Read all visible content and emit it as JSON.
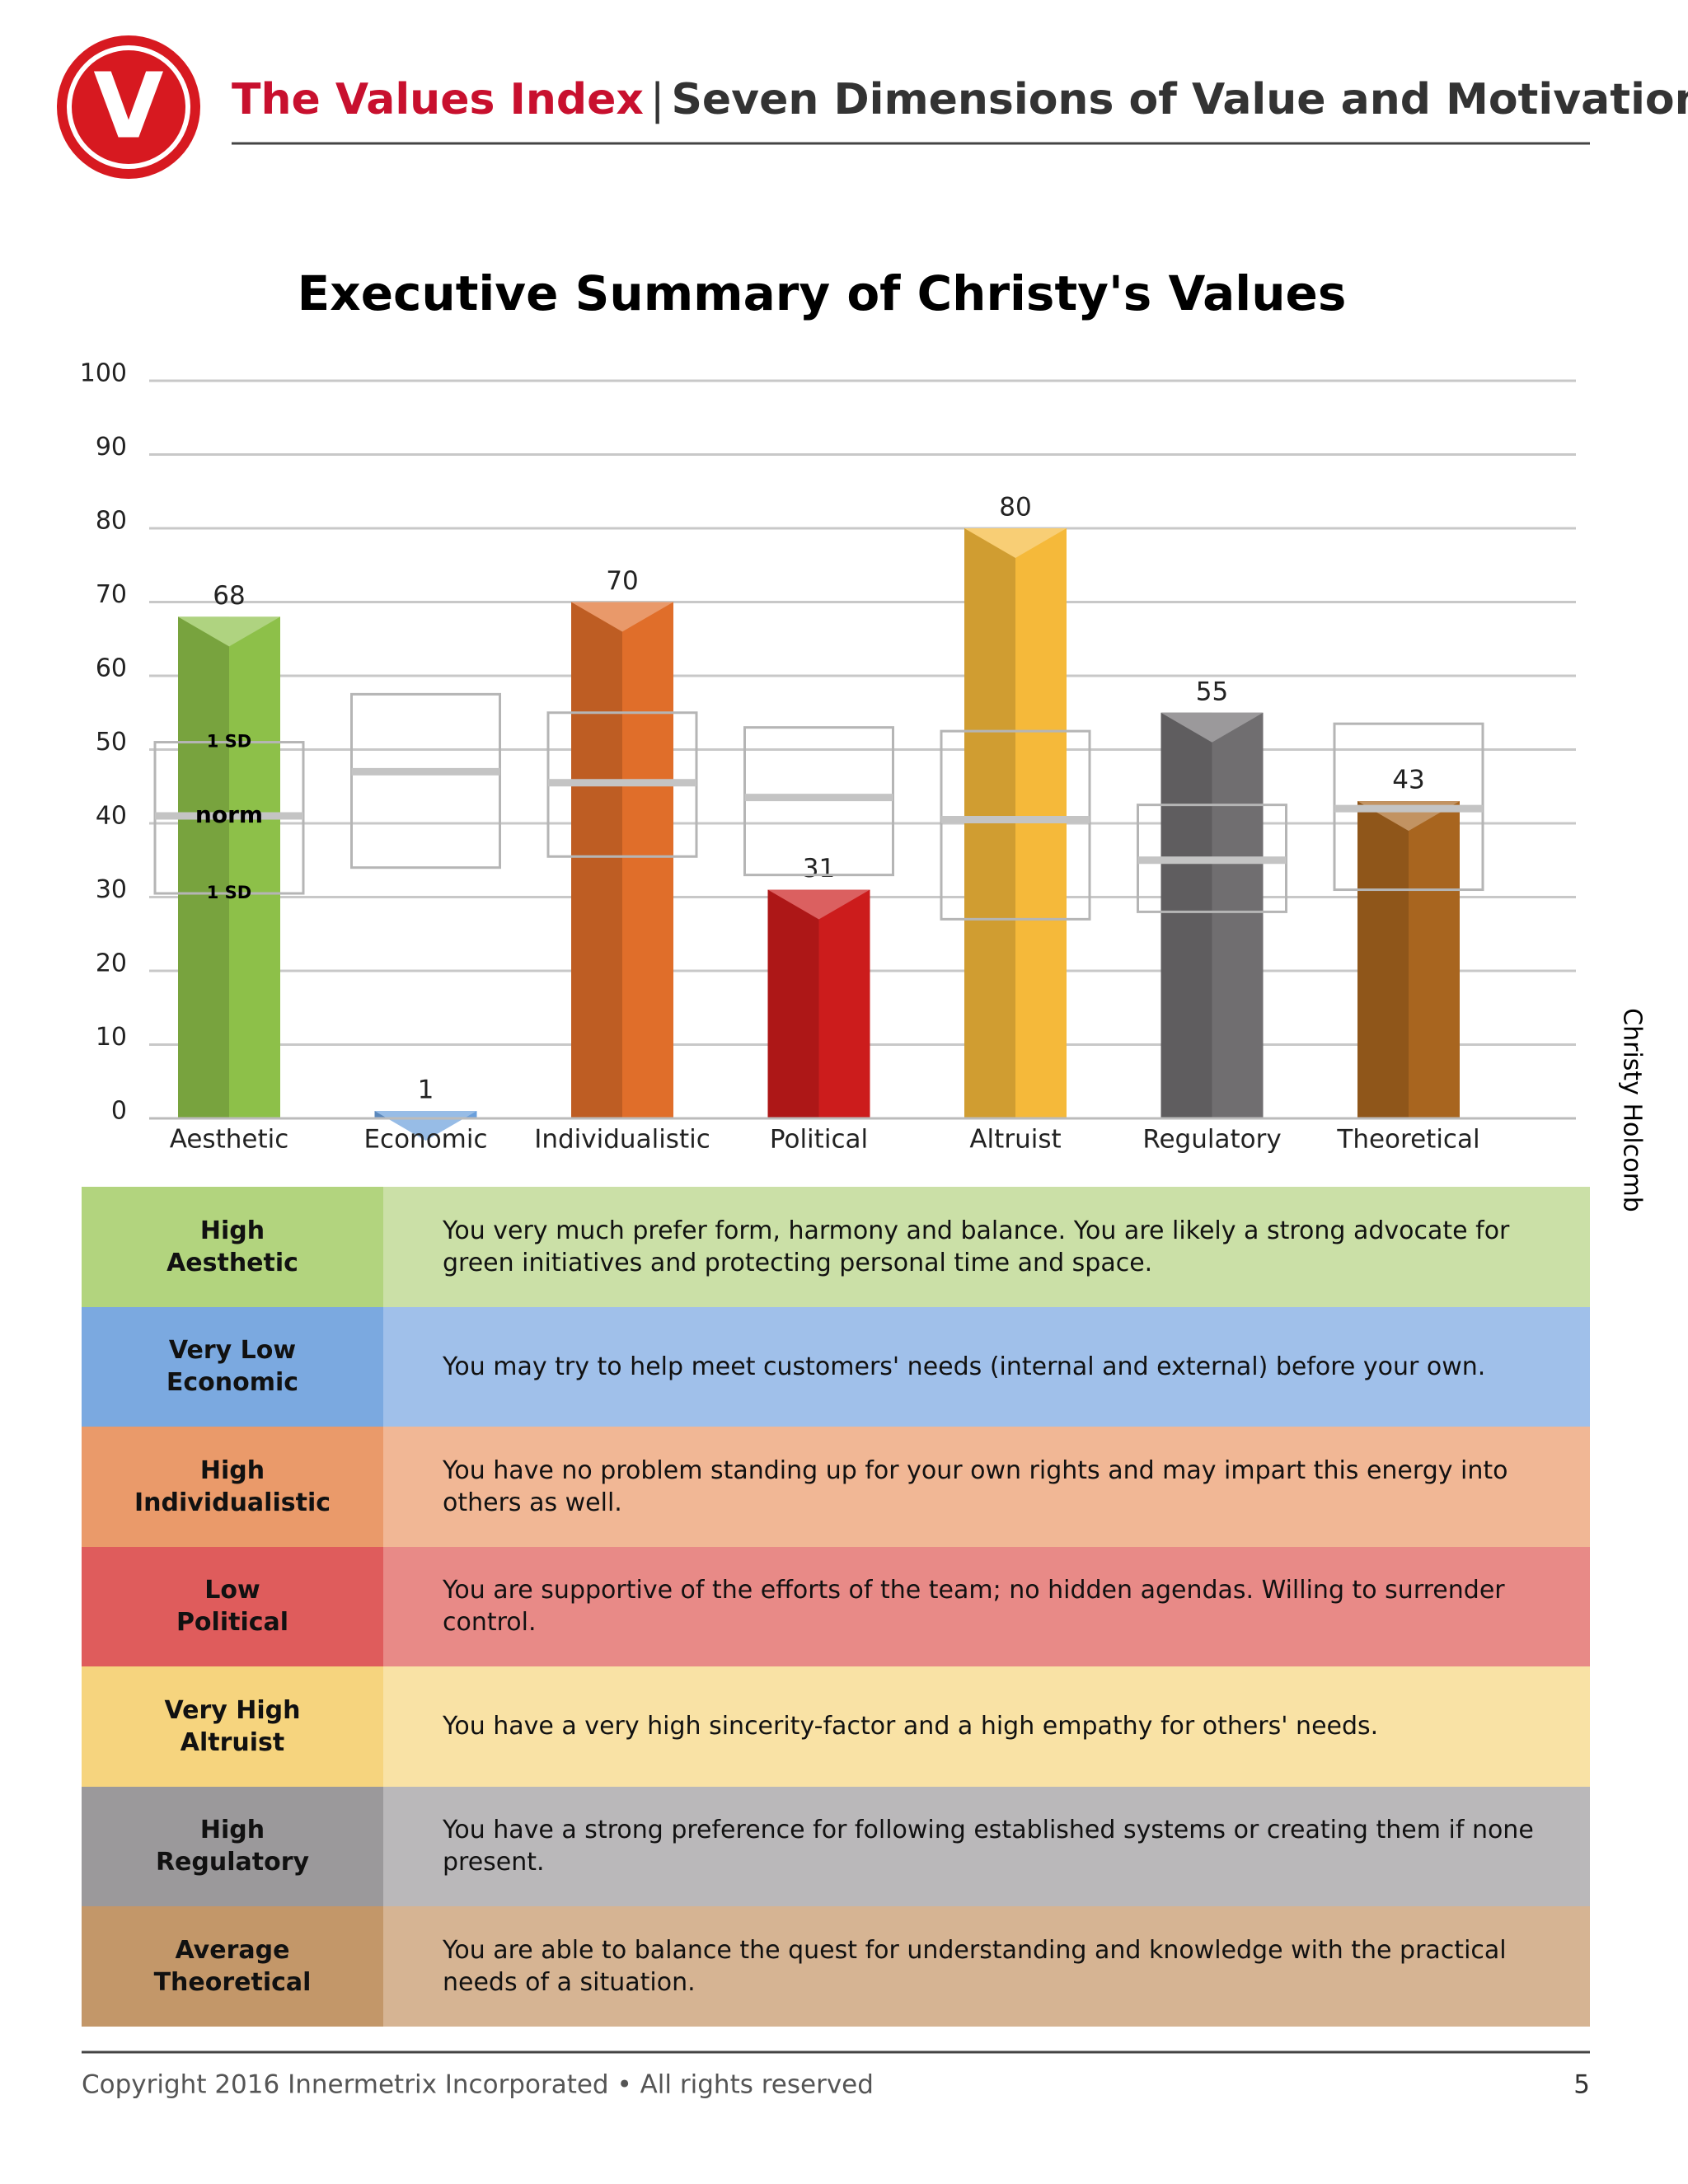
{
  "header": {
    "brand": "The Values Index",
    "separator": "|",
    "subtitle": "Seven Dimensions of Value and Motivation",
    "logo_letter": "V"
  },
  "chart_data": {
    "type": "bar",
    "title": "Executive Summary of Christy's Values",
    "categories": [
      "Aesthetic",
      "Economic",
      "Individualistic",
      "Political",
      "Altruist",
      "Regulatory",
      "Theoretical"
    ],
    "values": [
      68,
      1,
      70,
      31,
      80,
      55,
      43
    ],
    "colors": [
      "#8dc049",
      "#6a9fdc",
      "#e06e2a",
      "#cc1c1c",
      "#f5b93a",
      "#706e70",
      "#a8651f"
    ],
    "norms": [
      {
        "norm": 41,
        "sd_low": 30.5,
        "sd_high": 51
      },
      {
        "norm": 47,
        "sd_low": 34,
        "sd_high": 57.5
      },
      {
        "norm": 45.5,
        "sd_low": 35.5,
        "sd_high": 55
      },
      {
        "norm": 43.5,
        "sd_low": 33,
        "sd_high": 53
      },
      {
        "norm": 40.5,
        "sd_low": 27,
        "sd_high": 52.5
      },
      {
        "norm": 35,
        "sd_low": 28,
        "sd_high": 42.5
      },
      {
        "norm": 42,
        "sd_low": 31,
        "sd_high": 53.5
      }
    ],
    "norm_labels": {
      "sd": "1 SD",
      "norm": "norm"
    },
    "ylim": [
      0,
      100
    ],
    "yticks": [
      0,
      10,
      20,
      30,
      40,
      50,
      60,
      70,
      80,
      90,
      100
    ],
    "grid": true
  },
  "side_label": "Christy Holcomb",
  "table": {
    "rows": [
      {
        "level": "High",
        "dimension": "Aesthetic",
        "description": "You very much prefer form, harmony and balance. You are likely a strong advocate for green initiatives and protecting personal time and space.",
        "color": "#b2d47e",
        "light_color": "#cbe0a7"
      },
      {
        "level": "Very Low",
        "dimension": "Economic",
        "description": "You may try to help meet customers' needs (internal and external) before your own.",
        "color": "#7ba9e0",
        "light_color": "#a0c0ea"
      },
      {
        "level": "High",
        "dimension": "Individualistic",
        "description": "You have no problem standing up for your own rights and may impart this energy into others as well.",
        "color": "#ea9a6a",
        "light_color": "#f1b795"
      },
      {
        "level": "Low",
        "dimension": "Political",
        "description": "You are supportive of the efforts of the team; no hidden agendas. Willing to surrender control.",
        "color": "#df5c5c",
        "light_color": "#e88a87"
      },
      {
        "level": "Very High",
        "dimension": "Altruist",
        "description": "You have a very high sincerity-factor and a high empathy for others' needs.",
        "color": "#f6d47e",
        "light_color": "#f9e2a5"
      },
      {
        "level": "High",
        "dimension": "Regulatory",
        "description": "You have a strong preference for following established systems or creating them if none present.",
        "color": "#9b999b",
        "light_color": "#bab8ba"
      },
      {
        "level": "Average",
        "dimension": "Theoretical",
        "description": "You are able to balance the quest for understanding and knowledge with the practical needs of a situation.",
        "color": "#c39769",
        "light_color": "#d6b493"
      }
    ]
  },
  "footer": {
    "copyright": "Copyright 2016 Innermetrix Incorporated • All rights reserved",
    "page": "5"
  }
}
